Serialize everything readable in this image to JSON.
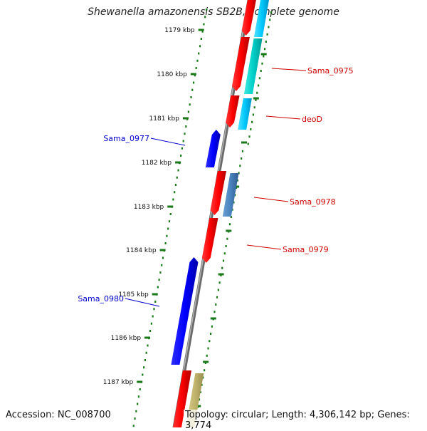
{
  "title": "Shewanella amazonensis SB2B, complete genome",
  "accession": "Accession: NC_008700",
  "topology": "Topology: circular; Length: 4,306,142 bp; Genes: 3,774",
  "colors": {
    "backbone": "#888888",
    "tick": "#1a7a1a",
    "forward_label": "#cc0000",
    "reverse_label": "#0000cc"
  },
  "kbp_ticks": [
    "1179 kbp",
    "1180 kbp",
    "1181 kbp",
    "1182 kbp",
    "1183 kbp",
    "1184 kbp",
    "1185 kbp",
    "1186 kbp",
    "1187 kbp"
  ],
  "gene_labels": [
    {
      "name": "Sama_0975",
      "strand": "forward"
    },
    {
      "name": "deoD",
      "strand": "forward"
    },
    {
      "name": "Sama_0977",
      "strand": "reverse"
    },
    {
      "name": "Sama_0978",
      "strand": "forward"
    },
    {
      "name": "Sama_0979",
      "strand": "forward"
    },
    {
      "name": "Sama_0980",
      "strand": "reverse"
    }
  ]
}
